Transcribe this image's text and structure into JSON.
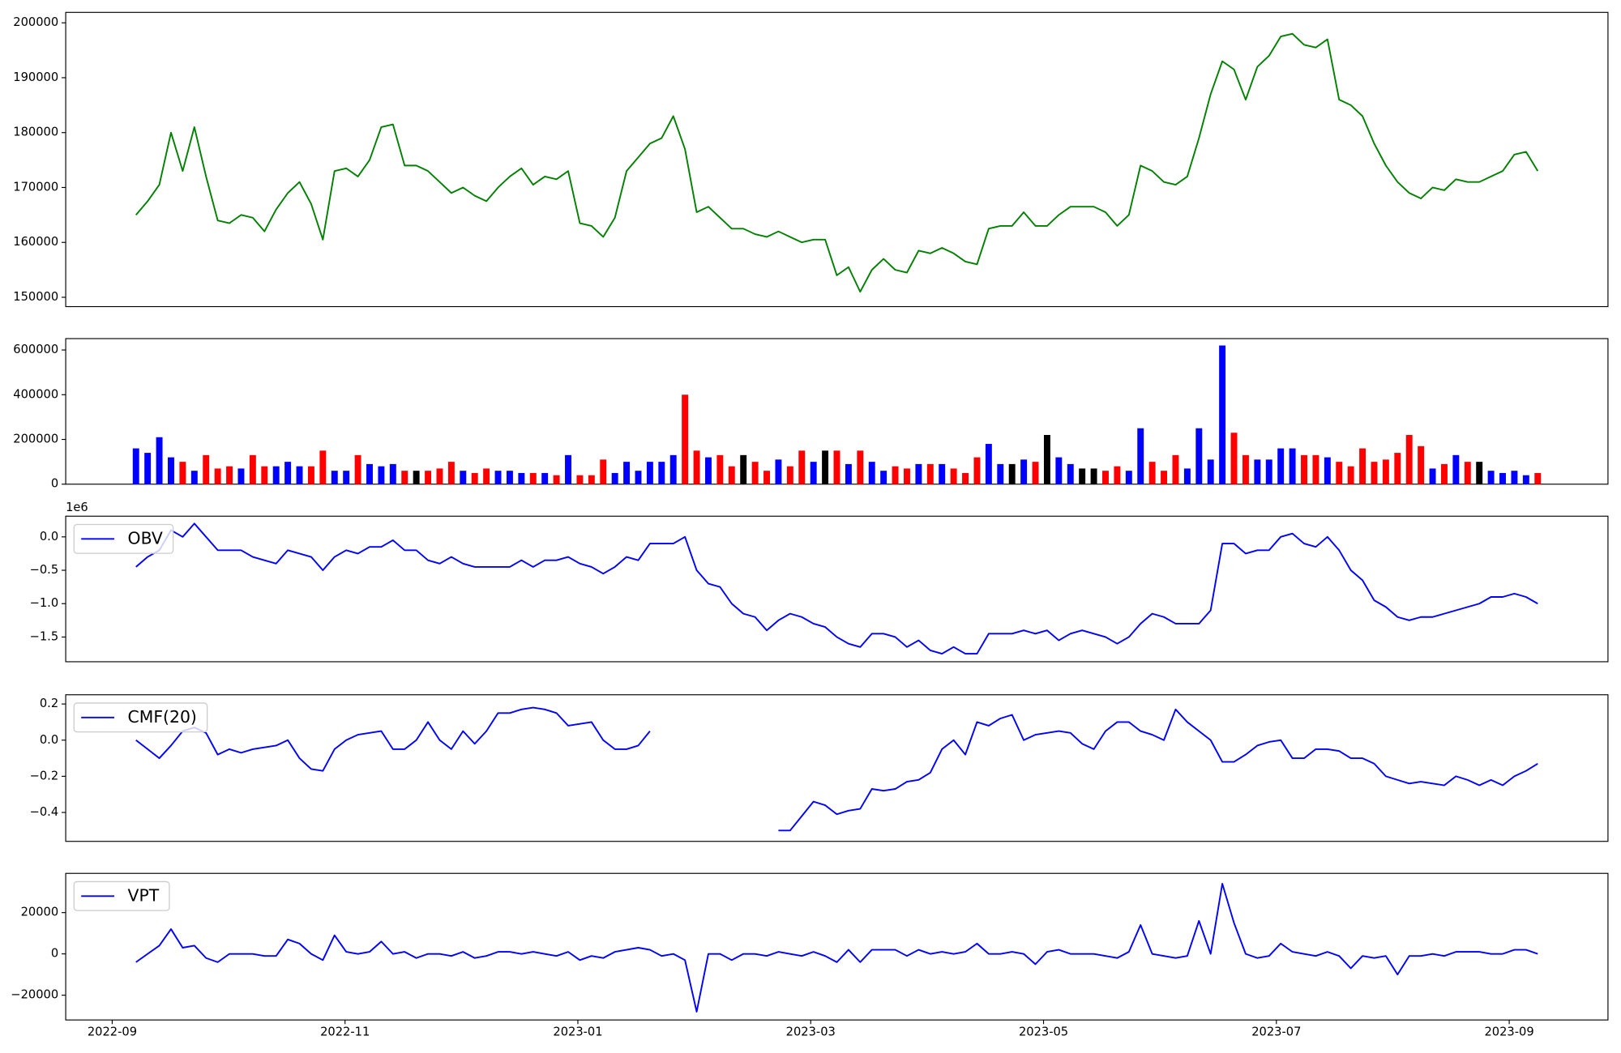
{
  "chart_data": [
    {
      "type": "line",
      "color": "green",
      "values": [
        165000,
        167500,
        170500,
        180000,
        173000,
        181000,
        172000,
        164000,
        163500,
        165000,
        164500,
        162000,
        166000,
        169000,
        171000,
        167000,
        160500,
        173000,
        173500,
        172000,
        175000,
        181000,
        181500,
        174000,
        174000,
        173000,
        171000,
        169000,
        170000,
        168500,
        167500,
        170000,
        172000,
        173500,
        170500,
        172000,
        171500,
        173000,
        163500,
        163000,
        161000,
        164500,
        173000,
        175500,
        178000,
        179000,
        183000,
        177000,
        165500,
        166500,
        164500,
        162500,
        162500,
        161500,
        161000,
        162000,
        161000,
        160000,
        160500,
        160500,
        154000,
        155500,
        151000,
        155000,
        157000,
        155000,
        154500,
        158500,
        158000,
        159000,
        158000,
        156500,
        156000,
        162500,
        163000,
        163000,
        165500,
        163000,
        163000,
        165000,
        166500,
        166500,
        166500,
        165500,
        163000,
        165000,
        174000,
        173000,
        171000,
        170500,
        172000,
        179000,
        187000,
        193000,
        191500,
        186000,
        192000,
        194000,
        197500,
        198000,
        196000,
        195500,
        197000,
        186000,
        185000,
        183000,
        178000,
        174000,
        171000,
        169000,
        168000,
        170000,
        169500,
        171500,
        171000,
        171000,
        172000,
        173000,
        176000,
        176500,
        173000
      ],
      "ylim": [
        148300,
        201900
      ],
      "yticks": [
        150000,
        160000,
        170000,
        180000,
        190000,
        200000
      ]
    },
    {
      "type": "bar",
      "up_color": "blue",
      "down_color": "red",
      "flat_color": "black",
      "values": [
        160000,
        140000,
        210000,
        120000,
        100000,
        60000,
        130000,
        70000,
        80000,
        70000,
        130000,
        80000,
        80000,
        100000,
        80000,
        80000,
        150000,
        60000,
        60000,
        130000,
        90000,
        80000,
        90000,
        60000,
        60000,
        60000,
        70000,
        100000,
        60000,
        50000,
        70000,
        60000,
        60000,
        50000,
        50000,
        50000,
        40000,
        130000,
        40000,
        40000,
        110000,
        50000,
        100000,
        60000,
        100000,
        100000,
        130000,
        400000,
        150000,
        120000,
        130000,
        80000,
        130000,
        100000,
        60000,
        110000,
        80000,
        150000,
        100000,
        150000,
        150000,
        90000,
        150000,
        100000,
        60000,
        80000,
        70000,
        90000,
        90000,
        90000,
        70000,
        50000,
        120000,
        180000,
        90000,
        90000,
        110000,
        100000,
        220000,
        120000,
        90000,
        70000,
        70000,
        60000,
        80000,
        60000,
        250000,
        100000,
        60000,
        130000,
        70000,
        250000,
        110000,
        620000,
        230000,
        130000,
        110000,
        110000,
        160000,
        160000,
        130000,
        130000,
        120000,
        100000,
        80000,
        160000,
        100000,
        110000,
        140000,
        220000,
        170000,
        70000,
        90000,
        130000,
        100000,
        100000,
        60000,
        50000,
        60000,
        40000,
        50000
      ],
      "ylim": [
        0,
        650800
      ],
      "yticks": [
        0,
        200000,
        400000,
        600000
      ]
    },
    {
      "type": "line",
      "legend": "upper left",
      "y_offset_label": "1e6",
      "series": [
        {
          "name": "OBV",
          "color": "blue",
          "values": [
            -450000,
            -300000,
            -200000,
            100000,
            0,
            200000,
            0,
            -200000,
            -200000,
            -200000,
            -300000,
            -350000,
            -400000,
            -200000,
            -250000,
            -300000,
            -500000,
            -300000,
            -200000,
            -250000,
            -150000,
            -150000,
            -50000,
            -200000,
            -200000,
            -350000,
            -400000,
            -300000,
            -400000,
            -450000,
            -450000,
            -450000,
            -450000,
            -350000,
            -450000,
            -350000,
            -350000,
            -300000,
            -400000,
            -450000,
            -550000,
            -450000,
            -300000,
            -350000,
            -100000,
            -100000,
            -100000,
            0,
            -500000,
            -700000,
            -750000,
            -1000000,
            -1150000,
            -1200000,
            -1400000,
            -1250000,
            -1150000,
            -1200000,
            -1300000,
            -1350000,
            -1500000,
            -1600000,
            -1650000,
            -1450000,
            -1450000,
            -1500000,
            -1650000,
            -1550000,
            -1700000,
            -1750000,
            -1650000,
            -1750000,
            -1750000,
            -1450000,
            -1450000,
            -1450000,
            -1400000,
            -1450000,
            -1400000,
            -1550000,
            -1450000,
            -1400000,
            -1450000,
            -1500000,
            -1600000,
            -1500000,
            -1300000,
            -1150000,
            -1200000,
            -1300000,
            -1300000,
            -1300000,
            -1100000,
            -100000,
            -100000,
            -250000,
            -200000,
            -200000,
            0,
            50000,
            -100000,
            -150000,
            0,
            -200000,
            -500000,
            -650000,
            -950000,
            -1050000,
            -1200000,
            -1250000,
            -1200000,
            -1200000,
            -1150000,
            -1100000,
            -1050000,
            -1000000,
            -900000,
            -900000,
            -850000,
            -900000,
            -1000000
          ]
        }
      ],
      "ylim": [
        -1870000,
        310000
      ],
      "yticks": [
        {
          "value": 0,
          "label": "0.0"
        },
        {
          "value": -500000,
          "label": "−0.5"
        },
        {
          "value": -1000000,
          "label": "−1.0"
        },
        {
          "value": -1500000,
          "label": "−1.5"
        }
      ]
    },
    {
      "type": "line",
      "legend": "upper left",
      "series": [
        {
          "name": "CMF(20)",
          "color": "blue",
          "values": [
            0.0,
            -0.05,
            -0.1,
            -0.03,
            0.05,
            0.07,
            0.04,
            -0.08,
            -0.05,
            -0.07,
            -0.05,
            -0.04,
            -0.03,
            0.0,
            -0.1,
            -0.16,
            -0.17,
            -0.05,
            0.0,
            0.03,
            0.04,
            0.05,
            -0.05,
            -0.05,
            0.0,
            0.1,
            0.0,
            -0.05,
            0.05,
            -0.02,
            0.05,
            0.15,
            0.15,
            0.17,
            0.18,
            0.17,
            0.15,
            0.08,
            0.09,
            0.1,
            0.0,
            -0.05,
            -0.05,
            -0.03,
            0.05,
            null,
            null,
            null,
            null,
            null,
            null,
            null,
            null,
            null,
            null,
            -0.5,
            -0.5,
            -0.42,
            -0.34,
            -0.36,
            -0.41,
            -0.39,
            -0.38,
            -0.27,
            -0.28,
            -0.27,
            -0.23,
            -0.22,
            -0.18,
            -0.05,
            0.0,
            -0.08,
            0.1,
            0.08,
            0.12,
            0.14,
            0.0,
            0.03,
            0.04,
            0.05,
            0.04,
            -0.02,
            -0.05,
            0.05,
            0.1,
            0.1,
            0.05,
            0.03,
            0.0,
            0.17,
            0.1,
            0.05,
            0.0,
            -0.12,
            -0.12,
            -0.08,
            -0.03,
            -0.01,
            0.0,
            -0.1,
            -0.1,
            -0.05,
            -0.05,
            -0.06,
            -0.1,
            -0.1,
            -0.13,
            -0.2,
            -0.22,
            -0.24,
            -0.23,
            -0.24,
            -0.25,
            -0.2,
            -0.22,
            -0.25,
            -0.22,
            -0.25,
            -0.2,
            -0.17,
            -0.13
          ]
        }
      ],
      "ylim": [
        -0.56,
        0.251
      ],
      "yticks": [
        0.2,
        {
          "value": 0,
          "label": "0.0"
        },
        {
          "value": -0.2,
          "label": "−0.2"
        },
        {
          "value": -0.4,
          "label": "−0.4"
        }
      ]
    },
    {
      "type": "line",
      "legend": "upper left",
      "series": [
        {
          "name": "VPT",
          "color": "blue",
          "values": [
            -4000,
            0,
            4000,
            12000,
            3000,
            4000,
            -2000,
            -4000,
            0,
            0,
            0,
            -1000,
            -1000,
            7000,
            5000,
            0,
            -3000,
            9000,
            1000,
            0,
            1000,
            6000,
            0,
            1000,
            -2000,
            0,
            0,
            -1000,
            1000,
            -2000,
            -1000,
            1000,
            1000,
            0,
            1000,
            0,
            -1000,
            1000,
            -3000,
            -1000,
            -2000,
            1000,
            2000,
            3000,
            2000,
            -1000,
            0,
            -3000,
            -28000,
            0,
            0,
            -3000,
            0,
            0,
            -1000,
            1000,
            0,
            -1000,
            1000,
            -1000,
            -4000,
            2000,
            -4000,
            2000,
            2000,
            2000,
            -1000,
            2000,
            0,
            1000,
            0,
            1000,
            5000,
            0,
            0,
            1000,
            0,
            -5000,
            1000,
            2000,
            0,
            0,
            0,
            -1000,
            -2000,
            1000,
            14000,
            0,
            -1000,
            -2000,
            -1000,
            16000,
            0,
            34000,
            15000,
            0,
            -2000,
            -1000,
            5000,
            1000,
            0,
            -1000,
            1000,
            -1000,
            -7000,
            -1000,
            -2000,
            -1000,
            -10000,
            -1000,
            -1000,
            0,
            -1000,
            1000,
            1000,
            1000,
            0,
            0,
            2000,
            2000,
            0
          ]
        }
      ],
      "ylim": [
        -32000,
        39000
      ],
      "yticks": [
        20000,
        0,
        {
          "value": -20000,
          "label": "−20000"
        }
      ],
      "xticks": [
        "2022-09",
        "2022-11",
        "2023-01",
        "2023-03",
        "2023-05",
        "2023-07",
        "2023-09"
      ]
    }
  ]
}
